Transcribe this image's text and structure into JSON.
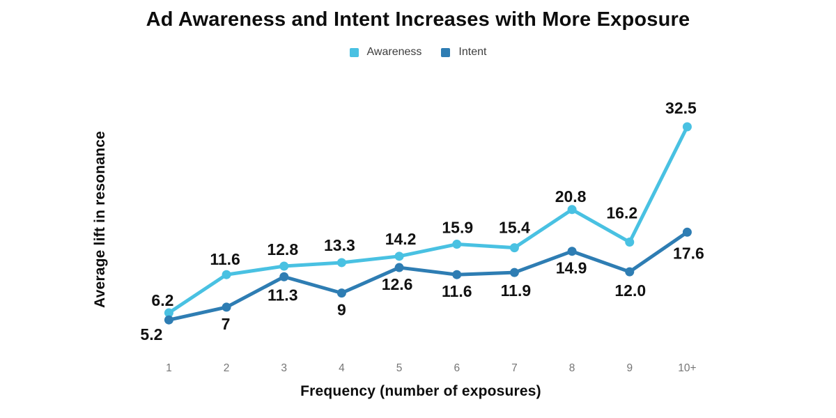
{
  "chart_data": {
    "type": "line",
    "title": "Ad Awareness and Intent Increases with More Exposure",
    "xlabel": "Frequency (number of exposures)",
    "ylabel": "Average lift in resonance",
    "categories": [
      "1",
      "2",
      "3",
      "4",
      "5",
      "6",
      "7",
      "8",
      "9",
      "10+"
    ],
    "series": [
      {
        "name": "Awareness",
        "color": "#49C1E2",
        "values": [
          6.2,
          11.6,
          12.8,
          13.3,
          14.2,
          15.9,
          15.4,
          20.8,
          16.2,
          32.5
        ],
        "labels": [
          "6.2",
          "11.6",
          "12.8",
          "13.3",
          "14.2",
          "15.9",
          "15.4",
          "20.8",
          "16.2",
          "32.5"
        ]
      },
      {
        "name": "Intent",
        "color": "#2E7DB3",
        "values": [
          5.2,
          7,
          11.3,
          9,
          12.6,
          11.6,
          11.9,
          14.9,
          12.0,
          17.6
        ],
        "labels": [
          "5.2",
          "7",
          "11.3",
          "9",
          "12.6",
          "11.6",
          "11.9",
          "14.9",
          "12.0",
          "17.6"
        ]
      }
    ],
    "ylim": [
      0,
      45
    ],
    "grid": false,
    "legend_position": "top",
    "label_color": "#111111",
    "tick_color": "#757575"
  }
}
